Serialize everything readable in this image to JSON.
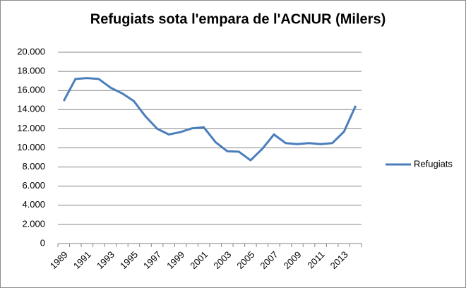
{
  "chart_data": {
    "type": "line",
    "title": "Refugiats  sota l'empara de l'ACNUR (Milers)",
    "categories": [
      "1989",
      null,
      "1991",
      null,
      "1993",
      null,
      "1995",
      null,
      "1997",
      null,
      "1999",
      null,
      "2001",
      null,
      "2003",
      null,
      "2005",
      null,
      "2007",
      null,
      "2009",
      null,
      "2011",
      null,
      "2013",
      null
    ],
    "series": [
      {
        "name": "Refugiats",
        "color": "#4a7ebb",
        "values": [
          14900,
          17200,
          17300,
          17200,
          16300,
          15700,
          14900,
          13300,
          12000,
          11400,
          11650,
          12050,
          12150,
          10600,
          9650,
          9600,
          8700,
          9900,
          11400,
          10500,
          10400,
          10500,
          10400,
          10500,
          11700,
          14400
        ]
      }
    ],
    "ylim": [
      0,
      20000
    ],
    "yticks": [
      0,
      {
        "value": 2000,
        "label": "2.000"
      },
      {
        "value": 4000,
        "label": "4.000"
      },
      {
        "value": 6000,
        "label": "6.000"
      },
      {
        "value": 8000,
        "label": "8.000"
      },
      {
        "value": 10000,
        "label": "10.000"
      },
      {
        "value": 12000,
        "label": "12.000"
      },
      {
        "value": 14000,
        "label": "14.000"
      },
      {
        "value": 16000,
        "label": "16.000"
      },
      {
        "value": 18000,
        "label": "18.000"
      },
      {
        "value": 20000,
        "label": "20.000"
      }
    ],
    "grid": true,
    "legend": "right"
  }
}
